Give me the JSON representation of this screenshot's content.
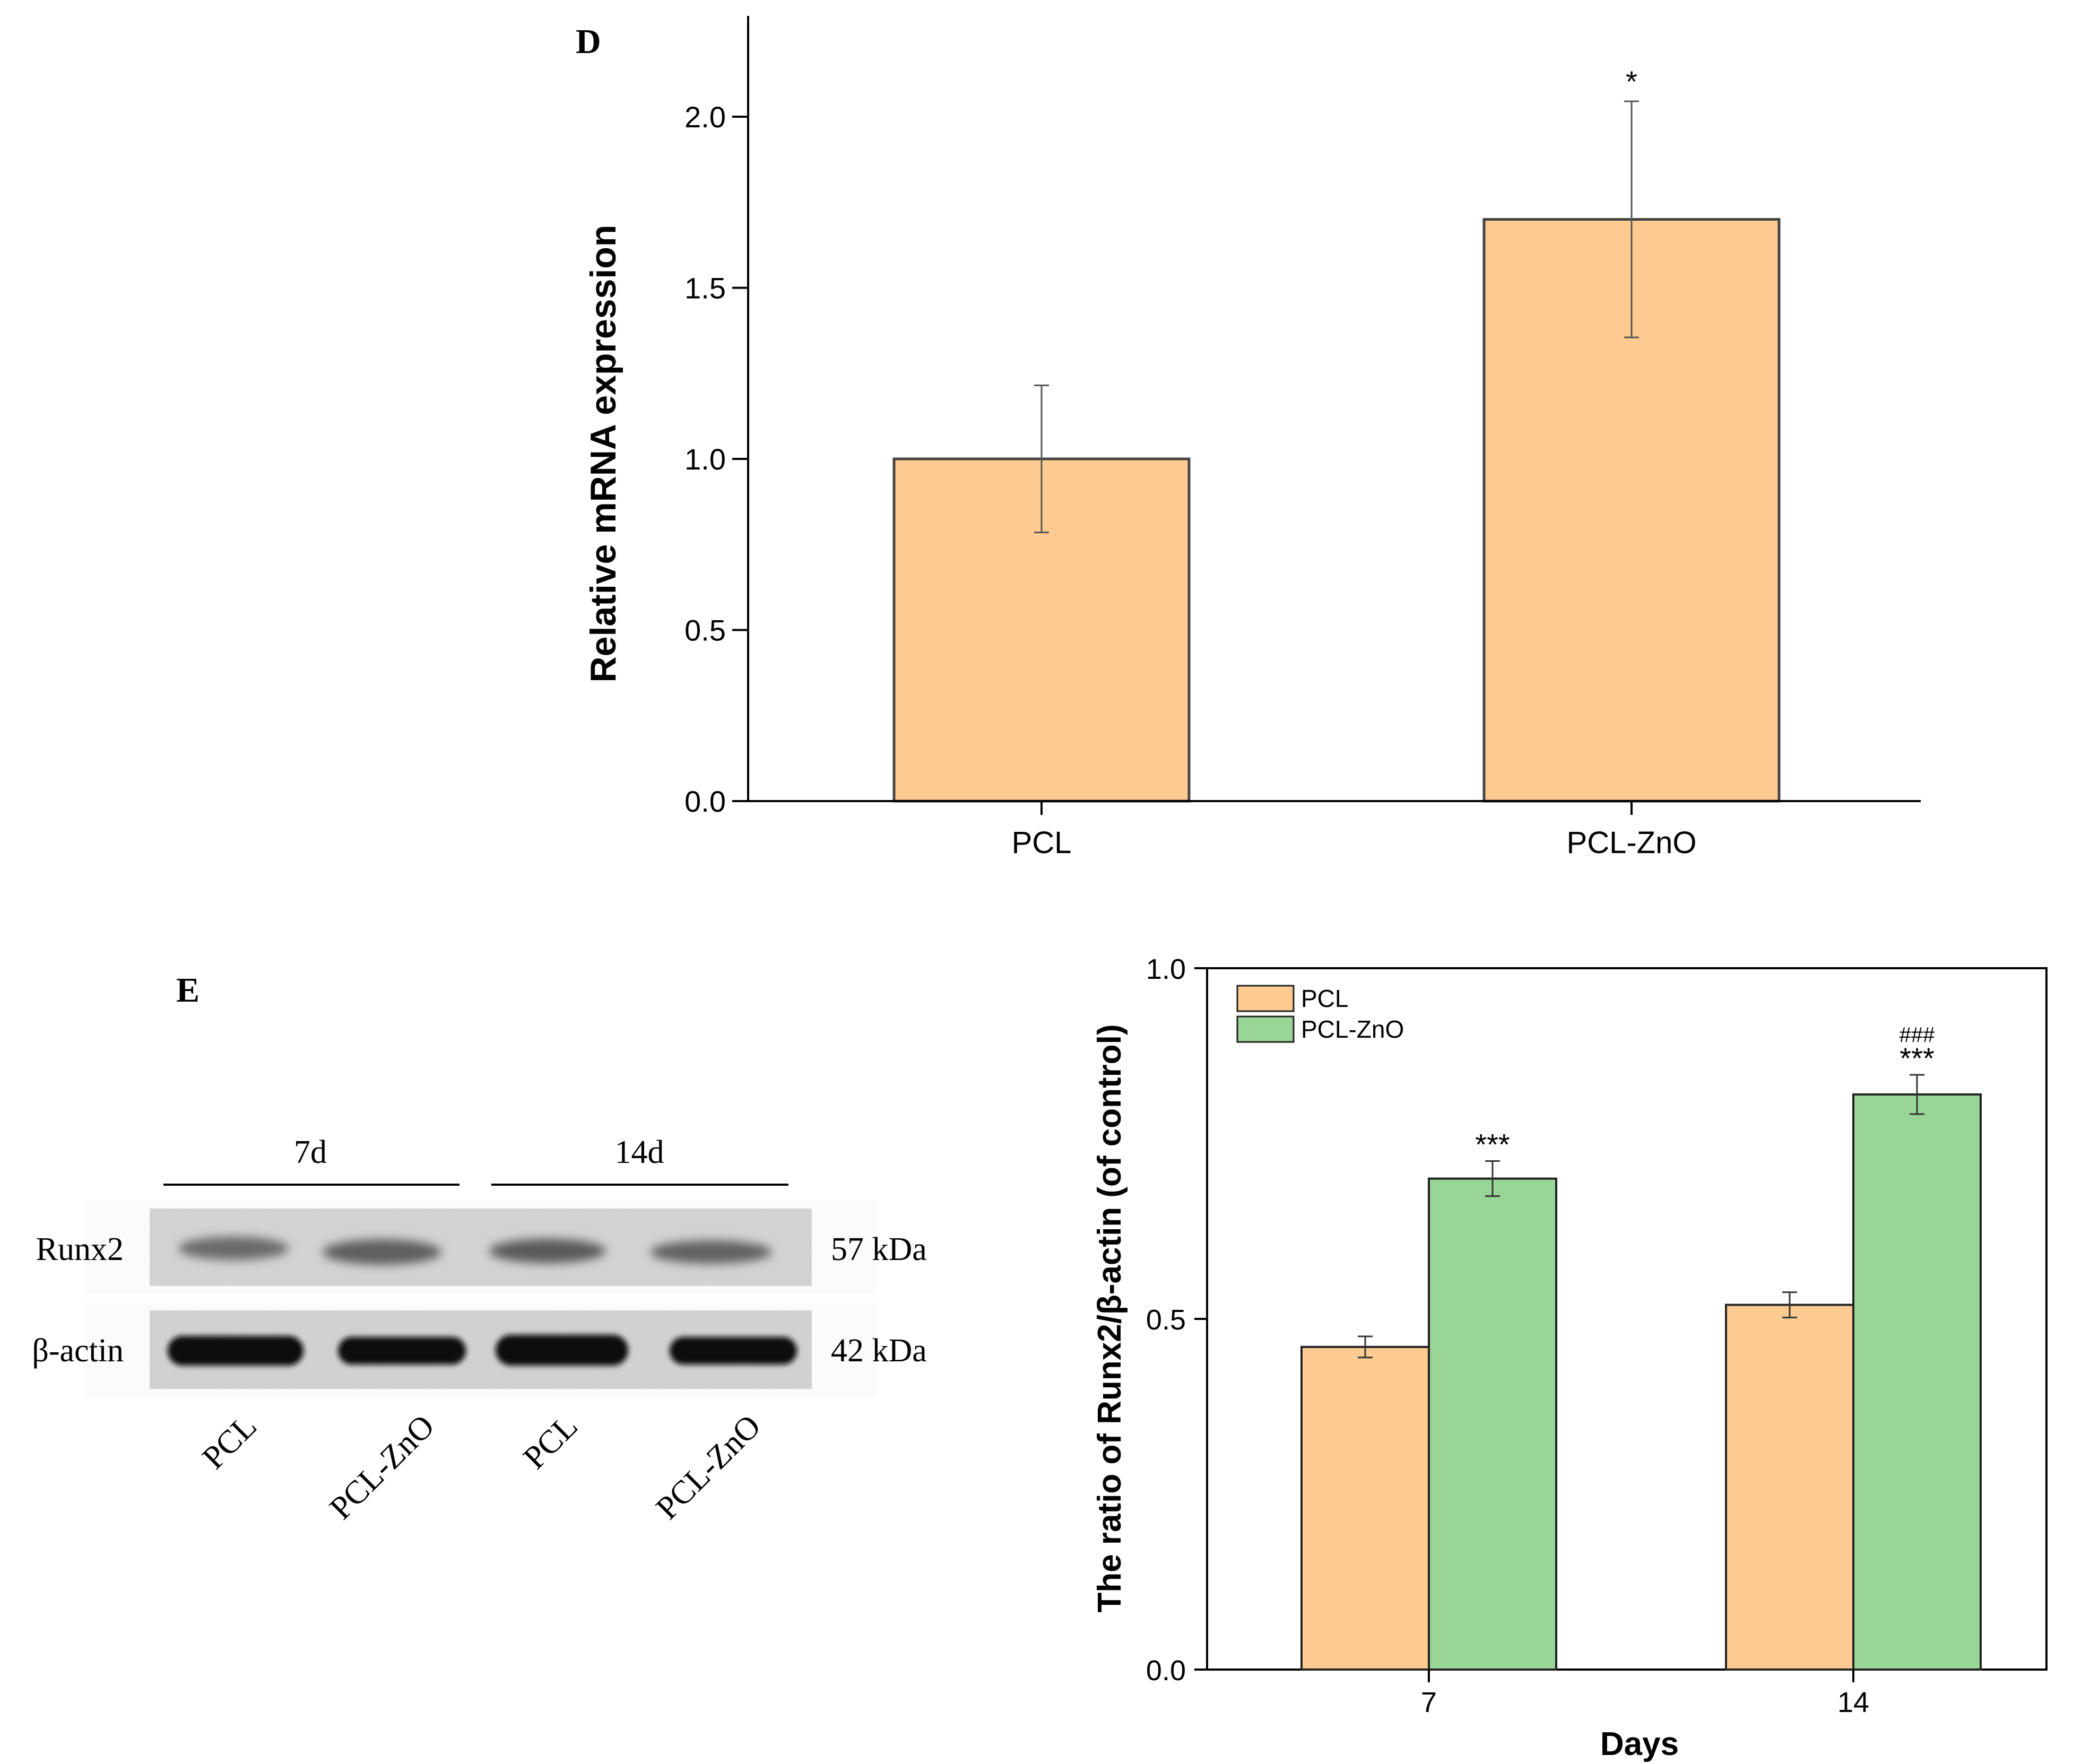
{
  "panel_d": {
    "label": "D"
  },
  "panel_e": {
    "label": "E",
    "blot": {
      "groups": [
        "7d",
        "14d"
      ],
      "rows": [
        {
          "name": "Runx2",
          "size": "57 kDa"
        },
        {
          "name": "β-actin",
          "size": "42 kDa"
        }
      ],
      "lanes": [
        "PCL",
        "PCL-ZnO",
        "PCL",
        "PCL-ZnO"
      ]
    }
  },
  "colors": {
    "pcl": "#FDCB91",
    "pcl_zno": "#99D596",
    "axis": "#000000",
    "bar_edge": "#444444"
  },
  "chart_data": [
    {
      "type": "bar",
      "title": "",
      "xlabel": "",
      "ylabel": "Relative mRNA expression",
      "categories": [
        "PCL",
        "PCL-ZnO"
      ],
      "values": [
        1.0,
        1.7
      ],
      "errors": [
        0.215,
        0.345
      ],
      "annotations": [
        "",
        "*"
      ],
      "ylim": [
        0,
        2.3
      ],
      "yticks": [
        "0.0",
        "0.5",
        "1.0",
        "1.5",
        "2.0"
      ],
      "grid": false,
      "color": "#FDCB91"
    },
    {
      "type": "bar",
      "title": "",
      "xlabel": "Days",
      "ylabel": "The ratio of Runx2/β-actin (of control)",
      "categories": [
        "7",
        "14"
      ],
      "series": [
        {
          "name": "PCL",
          "values": [
            0.46,
            0.52
          ],
          "errors": [
            0.015,
            0.018
          ],
          "annotations": [
            "",
            ""
          ],
          "color": "#FDCB91"
        },
        {
          "name": "PCL-ZnO",
          "values": [
            0.7,
            0.82
          ],
          "errors": [
            0.025,
            0.028
          ],
          "annotations": [
            "***",
            "***"
          ],
          "annotations2": [
            "",
            "###"
          ],
          "color": "#99D596"
        }
      ],
      "ylim": [
        0,
        1.0
      ],
      "yticks": [
        "0.0",
        "0.5",
        "1.0"
      ],
      "legend": "top-left",
      "grid": false
    }
  ]
}
